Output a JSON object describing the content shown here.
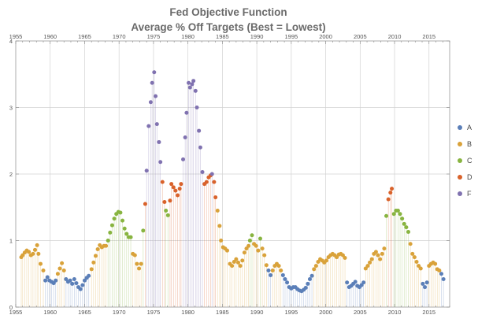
{
  "chart_data": {
    "type": "scatter",
    "title": "Fed Objective Function",
    "subtitle": "Average % Off Targets (Best = Lowest)",
    "xlabel": "",
    "ylabel": "",
    "xlim": [
      1955,
      2018
    ],
    "ylim": [
      0,
      4
    ],
    "xticks": [
      "1955",
      "1960",
      "1965",
      "1970",
      "1975",
      "1980",
      "1985",
      "1990",
      "1995",
      "2000",
      "2005",
      "2010",
      "2015"
    ],
    "yticks": [
      "0",
      "1",
      "2",
      "3",
      "4"
    ],
    "grid": true,
    "stems": true,
    "legend_position": "right",
    "categories": [
      "A",
      "B",
      "C",
      "D",
      "F"
    ],
    "colors": {
      "A": "#5b7fb8",
      "B": "#d9a23a",
      "C": "#88b440",
      "D": "#d9622b",
      "F": "#8072b0"
    },
    "points": [
      [
        1955.8,
        0.75,
        "B"
      ],
      [
        1956.0,
        0.78,
        "B"
      ],
      [
        1956.3,
        0.82,
        "B"
      ],
      [
        1956.6,
        0.85,
        "B"
      ],
      [
        1956.9,
        0.83,
        "B"
      ],
      [
        1957.2,
        0.78,
        "B"
      ],
      [
        1957.5,
        0.8,
        "B"
      ],
      [
        1957.8,
        0.86,
        "B"
      ],
      [
        1958.1,
        0.93,
        "B"
      ],
      [
        1958.3,
        0.8,
        "B"
      ],
      [
        1958.6,
        0.65,
        "B"
      ],
      [
        1959.0,
        0.55,
        "B"
      ],
      [
        1959.3,
        0.4,
        "A"
      ],
      [
        1959.6,
        0.45,
        "A"
      ],
      [
        1959.9,
        0.4,
        "A"
      ],
      [
        1960.2,
        0.38,
        "A"
      ],
      [
        1960.5,
        0.36,
        "A"
      ],
      [
        1960.8,
        0.4,
        "A"
      ],
      [
        1961.1,
        0.5,
        "B"
      ],
      [
        1961.4,
        0.58,
        "B"
      ],
      [
        1961.7,
        0.66,
        "B"
      ],
      [
        1962.0,
        0.55,
        "B"
      ],
      [
        1962.3,
        0.42,
        "A"
      ],
      [
        1962.6,
        0.38,
        "A"
      ],
      [
        1962.9,
        0.4,
        "A"
      ],
      [
        1963.2,
        0.35,
        "A"
      ],
      [
        1963.5,
        0.42,
        "A"
      ],
      [
        1963.8,
        0.36,
        "A"
      ],
      [
        1964.1,
        0.3,
        "A"
      ],
      [
        1964.4,
        0.27,
        "A"
      ],
      [
        1964.7,
        0.33,
        "A"
      ],
      [
        1965.0,
        0.4,
        "A"
      ],
      [
        1965.3,
        0.44,
        "A"
      ],
      [
        1965.6,
        0.47,
        "A"
      ],
      [
        1966.0,
        0.57,
        "B"
      ],
      [
        1966.3,
        0.67,
        "B"
      ],
      [
        1966.6,
        0.77,
        "B"
      ],
      [
        1966.9,
        0.87,
        "B"
      ],
      [
        1967.2,
        0.93,
        "B"
      ],
      [
        1967.5,
        0.9,
        "B"
      ],
      [
        1967.8,
        0.92,
        "B"
      ],
      [
        1968.1,
        0.92,
        "B"
      ],
      [
        1968.4,
        1.0,
        "C"
      ],
      [
        1968.7,
        1.12,
        "C"
      ],
      [
        1969.0,
        1.23,
        "C"
      ],
      [
        1969.3,
        1.33,
        "C"
      ],
      [
        1969.6,
        1.4,
        "C"
      ],
      [
        1969.9,
        1.43,
        "C"
      ],
      [
        1970.2,
        1.42,
        "C"
      ],
      [
        1970.5,
        1.3,
        "C"
      ],
      [
        1970.8,
        1.18,
        "C"
      ],
      [
        1971.1,
        1.1,
        "C"
      ],
      [
        1971.4,
        1.05,
        "C"
      ],
      [
        1971.7,
        1.05,
        "C"
      ],
      [
        1972.0,
        0.8,
        "B"
      ],
      [
        1972.3,
        0.78,
        "B"
      ],
      [
        1972.6,
        0.65,
        "B"
      ],
      [
        1972.9,
        0.58,
        "B"
      ],
      [
        1973.2,
        0.65,
        "B"
      ],
      [
        1973.5,
        1.15,
        "C"
      ],
      [
        1973.8,
        1.55,
        "D"
      ],
      [
        1974.0,
        2.05,
        "F"
      ],
      [
        1974.3,
        2.72,
        "F"
      ],
      [
        1974.6,
        3.08,
        "F"
      ],
      [
        1974.8,
        3.37,
        "F"
      ],
      [
        1975.1,
        3.53,
        "F"
      ],
      [
        1975.3,
        3.17,
        "F"
      ],
      [
        1975.5,
        2.75,
        "F"
      ],
      [
        1975.8,
        2.48,
        "F"
      ],
      [
        1976.0,
        2.18,
        "F"
      ],
      [
        1976.3,
        1.88,
        "D"
      ],
      [
        1976.6,
        1.58,
        "D"
      ],
      [
        1976.8,
        1.45,
        "C"
      ],
      [
        1977.1,
        1.38,
        "C"
      ],
      [
        1977.4,
        1.6,
        "D"
      ],
      [
        1977.6,
        1.85,
        "D"
      ],
      [
        1977.9,
        1.8,
        "D"
      ],
      [
        1978.2,
        1.75,
        "D"
      ],
      [
        1978.5,
        1.68,
        "D"
      ],
      [
        1978.8,
        1.78,
        "D"
      ],
      [
        1979.0,
        1.85,
        "D"
      ],
      [
        1979.3,
        2.22,
        "F"
      ],
      [
        1979.6,
        2.55,
        "F"
      ],
      [
        1979.8,
        2.92,
        "F"
      ],
      [
        1980.1,
        3.37,
        "F"
      ],
      [
        1980.3,
        3.3,
        "F"
      ],
      [
        1980.6,
        3.35,
        "F"
      ],
      [
        1980.8,
        3.4,
        "F"
      ],
      [
        1981.1,
        3.25,
        "F"
      ],
      [
        1981.3,
        3.0,
        "F"
      ],
      [
        1981.6,
        2.65,
        "F"
      ],
      [
        1981.8,
        2.4,
        "F"
      ],
      [
        1982.1,
        2.03,
        "F"
      ],
      [
        1982.4,
        1.85,
        "D"
      ],
      [
        1982.7,
        1.88,
        "D"
      ],
      [
        1983.0,
        1.95,
        "D"
      ],
      [
        1983.3,
        1.98,
        "D"
      ],
      [
        1983.5,
        2.0,
        "F"
      ],
      [
        1983.8,
        1.88,
        "D"
      ],
      [
        1984.0,
        1.65,
        "D"
      ],
      [
        1984.3,
        1.45,
        "B"
      ],
      [
        1984.6,
        1.22,
        "B"
      ],
      [
        1984.8,
        1.0,
        "B"
      ],
      [
        1985.1,
        0.9,
        "B"
      ],
      [
        1985.4,
        0.88,
        "B"
      ],
      [
        1985.7,
        0.85,
        "B"
      ],
      [
        1986.1,
        0.65,
        "B"
      ],
      [
        1986.4,
        0.62,
        "B"
      ],
      [
        1986.7,
        0.68,
        "B"
      ],
      [
        1987.0,
        0.72,
        "B"
      ],
      [
        1987.3,
        0.67,
        "B"
      ],
      [
        1987.6,
        0.62,
        "B"
      ],
      [
        1987.9,
        0.7,
        "B"
      ],
      [
        1988.2,
        0.82,
        "B"
      ],
      [
        1988.5,
        0.88,
        "B"
      ],
      [
        1988.8,
        0.92,
        "B"
      ],
      [
        1989.0,
        1.0,
        "C"
      ],
      [
        1989.3,
        1.08,
        "C"
      ],
      [
        1989.6,
        0.95,
        "B"
      ],
      [
        1989.9,
        0.92,
        "B"
      ],
      [
        1990.2,
        0.85,
        "B"
      ],
      [
        1990.5,
        1.03,
        "C"
      ],
      [
        1990.8,
        0.88,
        "B"
      ],
      [
        1991.1,
        0.78,
        "B"
      ],
      [
        1991.4,
        0.63,
        "B"
      ],
      [
        1991.7,
        0.55,
        "A"
      ],
      [
        1992.0,
        0.48,
        "A"
      ],
      [
        1992.3,
        0.55,
        "B"
      ],
      [
        1992.6,
        0.62,
        "B"
      ],
      [
        1992.9,
        0.65,
        "B"
      ],
      [
        1993.2,
        0.62,
        "B"
      ],
      [
        1993.5,
        0.55,
        "B"
      ],
      [
        1993.8,
        0.48,
        "A"
      ],
      [
        1994.1,
        0.42,
        "A"
      ],
      [
        1994.4,
        0.37,
        "A"
      ],
      [
        1994.7,
        0.3,
        "A"
      ],
      [
        1995.0,
        0.28,
        "A"
      ],
      [
        1995.3,
        0.3,
        "A"
      ],
      [
        1995.6,
        0.3,
        "A"
      ],
      [
        1995.9,
        0.27,
        "A"
      ],
      [
        1996.2,
        0.25,
        "A"
      ],
      [
        1996.5,
        0.24,
        "A"
      ],
      [
        1996.8,
        0.26,
        "A"
      ],
      [
        1997.1,
        0.29,
        "A"
      ],
      [
        1997.4,
        0.35,
        "A"
      ],
      [
        1997.7,
        0.42,
        "A"
      ],
      [
        1998.0,
        0.47,
        "A"
      ],
      [
        1998.3,
        0.57,
        "B"
      ],
      [
        1998.6,
        0.62,
        "B"
      ],
      [
        1998.9,
        0.68,
        "B"
      ],
      [
        1999.2,
        0.72,
        "B"
      ],
      [
        1999.5,
        0.7,
        "B"
      ],
      [
        1999.8,
        0.67,
        "B"
      ],
      [
        2000.1,
        0.7,
        "B"
      ],
      [
        2000.4,
        0.75,
        "B"
      ],
      [
        2000.7,
        0.78,
        "B"
      ],
      [
        2001.0,
        0.8,
        "B"
      ],
      [
        2001.3,
        0.78,
        "B"
      ],
      [
        2001.6,
        0.75,
        "B"
      ],
      [
        2001.9,
        0.79,
        "B"
      ],
      [
        2002.2,
        0.8,
        "B"
      ],
      [
        2002.5,
        0.78,
        "B"
      ],
      [
        2002.8,
        0.74,
        "B"
      ],
      [
        2003.1,
        0.37,
        "A"
      ],
      [
        2003.4,
        0.3,
        "A"
      ],
      [
        2003.7,
        0.32,
        "A"
      ],
      [
        2004.0,
        0.35,
        "A"
      ],
      [
        2004.3,
        0.38,
        "A"
      ],
      [
        2004.6,
        0.32,
        "A"
      ],
      [
        2004.9,
        0.3,
        "A"
      ],
      [
        2005.2,
        0.33,
        "A"
      ],
      [
        2005.5,
        0.37,
        "A"
      ],
      [
        2005.8,
        0.58,
        "B"
      ],
      [
        2006.1,
        0.62,
        "B"
      ],
      [
        2006.4,
        0.67,
        "B"
      ],
      [
        2006.7,
        0.72,
        "B"
      ],
      [
        2007.0,
        0.8,
        "B"
      ],
      [
        2007.3,
        0.83,
        "B"
      ],
      [
        2007.6,
        0.78,
        "B"
      ],
      [
        2007.9,
        0.72,
        "B"
      ],
      [
        2008.2,
        0.8,
        "B"
      ],
      [
        2008.5,
        0.88,
        "B"
      ],
      [
        2008.8,
        1.37,
        "C"
      ],
      [
        2009.1,
        1.62,
        "D"
      ],
      [
        2009.4,
        1.72,
        "D"
      ],
      [
        2009.6,
        1.78,
        "D"
      ],
      [
        2009.9,
        1.4,
        "C"
      ],
      [
        2010.2,
        1.45,
        "C"
      ],
      [
        2010.5,
        1.45,
        "C"
      ],
      [
        2010.8,
        1.4,
        "C"
      ],
      [
        2011.1,
        1.33,
        "C"
      ],
      [
        2011.4,
        1.25,
        "C"
      ],
      [
        2011.7,
        1.2,
        "C"
      ],
      [
        2012.0,
        1.13,
        "C"
      ],
      [
        2012.3,
        0.95,
        "B"
      ],
      [
        2012.6,
        0.8,
        "B"
      ],
      [
        2012.9,
        0.75,
        "B"
      ],
      [
        2013.2,
        0.68,
        "B"
      ],
      [
        2013.5,
        0.62,
        "B"
      ],
      [
        2013.8,
        0.58,
        "B"
      ],
      [
        2014.1,
        0.35,
        "A"
      ],
      [
        2014.4,
        0.3,
        "A"
      ],
      [
        2014.7,
        0.37,
        "A"
      ],
      [
        2015.0,
        0.62,
        "B"
      ],
      [
        2015.3,
        0.65,
        "B"
      ],
      [
        2015.6,
        0.67,
        "B"
      ],
      [
        2015.9,
        0.65,
        "B"
      ],
      [
        2016.2,
        0.57,
        "B"
      ],
      [
        2016.5,
        0.55,
        "B"
      ],
      [
        2016.8,
        0.5,
        "A"
      ],
      [
        2017.1,
        0.42,
        "A"
      ]
    ]
  }
}
